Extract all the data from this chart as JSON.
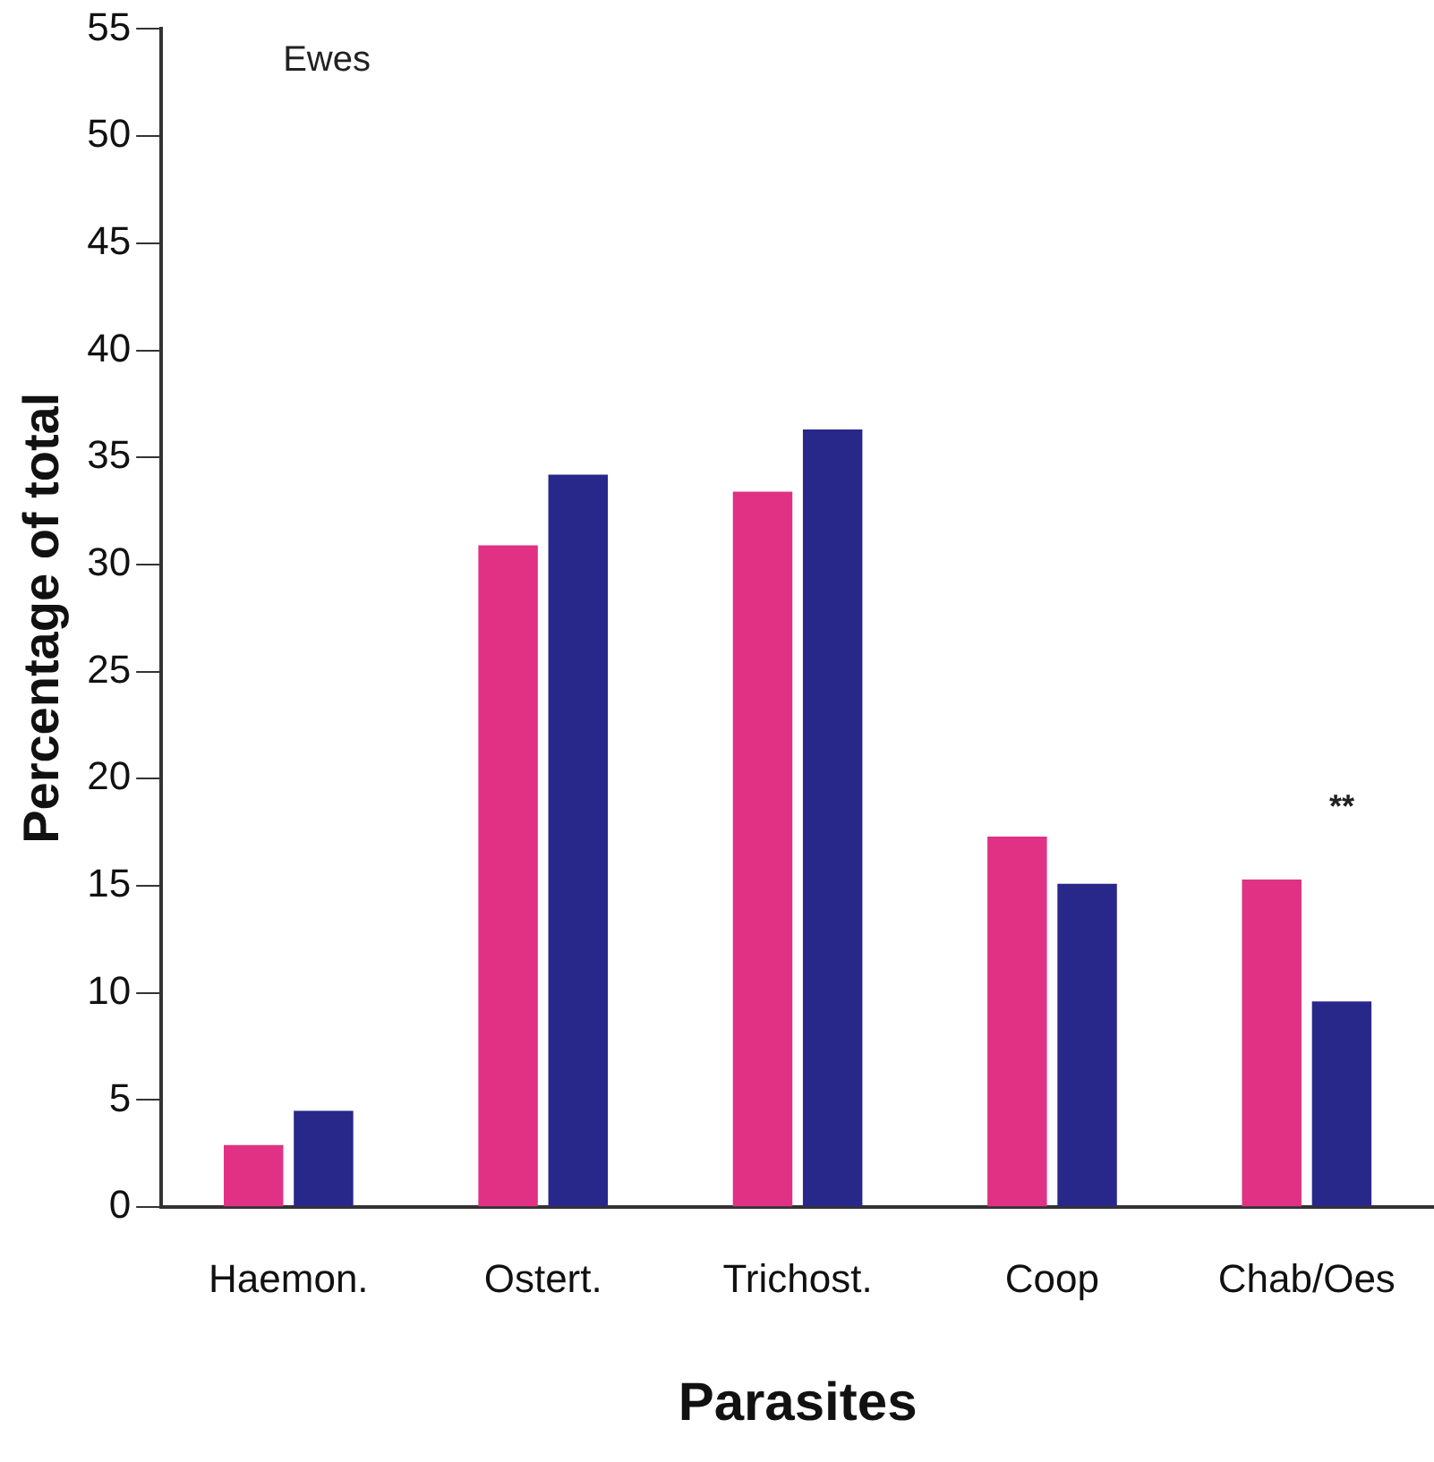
{
  "chart_data": {
    "type": "bar",
    "xlabel": "Parasites",
    "ylabel": "Percentage of total",
    "categories": [
      "Haemon.",
      "Ostert.",
      "Trichost.",
      "Coop",
      "Chab/Oes"
    ],
    "series": [
      {
        "color": "#e03184",
        "values": [
          2.9,
          30.9,
          33.4,
          17.3,
          15.3
        ]
      },
      {
        "color": "#28288a",
        "values": [
          4.5,
          34.2,
          36.3,
          15.1,
          9.6
        ]
      }
    ],
    "ylim": [
      0,
      55
    ],
    "yticks": [
      0,
      5,
      10,
      15,
      20,
      25,
      30,
      35,
      40,
      45,
      50,
      55
    ],
    "grid": false,
    "legend": false,
    "annotations": [
      "Ewes",
      "**"
    ]
  }
}
